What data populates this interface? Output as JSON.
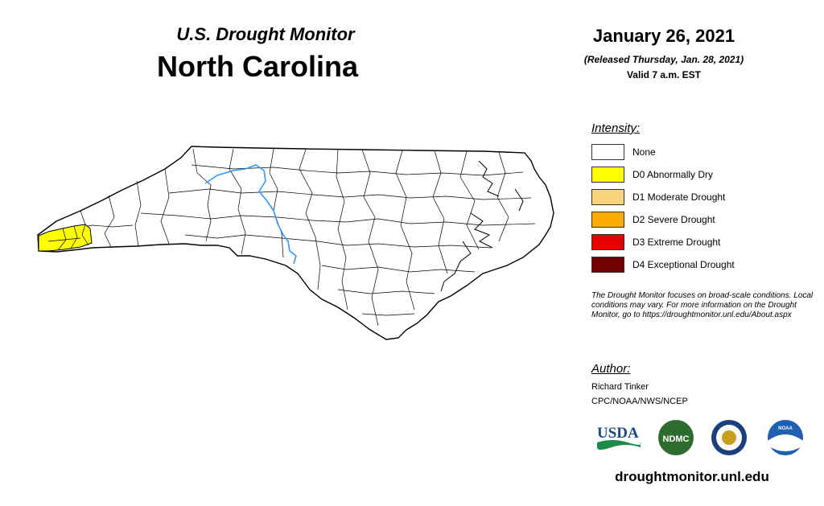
{
  "header": {
    "subtitle": "U.S. Drought Monitor",
    "state": "North Carolina",
    "date": "January 26, 2021",
    "released": "(Released Thursday, Jan. 28, 2021)",
    "valid": "Valid 7 a.m. EST"
  },
  "legend": {
    "title": "Intensity:",
    "items": [
      {
        "label": "None",
        "color": "#ffffff"
      },
      {
        "label": "D0 Abnormally Dry",
        "color": "#ffff00"
      },
      {
        "label": "D1 Moderate Drought",
        "color": "#fcd37f"
      },
      {
        "label": "D2 Severe Drought",
        "color": "#ffaa00"
      },
      {
        "label": "D3 Extreme Drought",
        "color": "#e60000"
      },
      {
        "label": "D4 Exceptional Drought",
        "color": "#730000"
      }
    ]
  },
  "note": "The Drought Monitor focuses on broad-scale conditions. Local conditions may vary. For more information on the Drought Monitor, go to https://droughtmonitor.unl.edu/About.aspx",
  "author": {
    "title": "Author:",
    "name": "Richard Tinker",
    "org": "CPC/NOAA/NWS/NCEP"
  },
  "logos": {
    "usda": "USDA",
    "ndmc": "NDMC",
    "noaa": "NOAA"
  },
  "footer_url": "droughtmonitor.unl.edu",
  "map": {
    "drought_area": "D0 Abnormally Dry",
    "drought_color": "#ffff00",
    "river_color": "#3399ff"
  }
}
